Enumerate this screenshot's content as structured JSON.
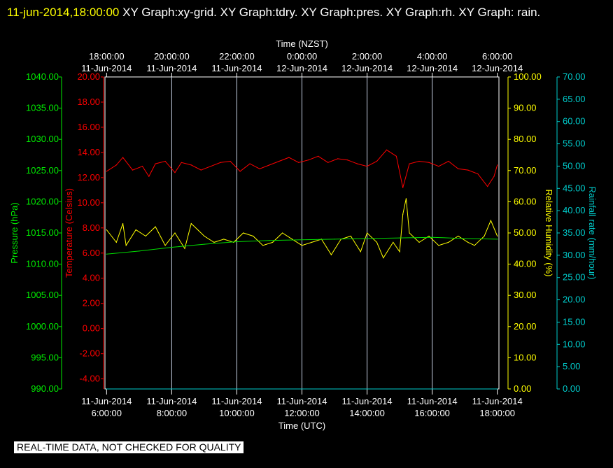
{
  "header": {
    "timestamp": "11-jun-2014,18:00:00",
    "graphs_text": "XY Graph:xy-grid.  XY Graph:tdry.  XY Graph:pres.  XY Graph:rh.  XY Graph: rain."
  },
  "footer": {
    "quality_note": "REAL-TIME DATA, NOT CHECKED FOR QUALITY"
  },
  "chart_data": {
    "type": "line",
    "x_top_label": "Time (NZST)",
    "x_bottom_label": "Time (UTC)",
    "x_ticks": [
      {
        "hour": 0,
        "utc_time": "6:00:00",
        "utc_date": "11-Jun-2014",
        "nzst_time": "18:00:00",
        "nzst_date": "11-Jun-2014"
      },
      {
        "hour": 2,
        "utc_time": "8:00:00",
        "utc_date": "11-Jun-2014",
        "nzst_time": "20:00:00",
        "nzst_date": "11-Jun-2014"
      },
      {
        "hour": 4,
        "utc_time": "10:00:00",
        "utc_date": "11-Jun-2014",
        "nzst_time": "22:00:00",
        "nzst_date": "11-Jun-2014"
      },
      {
        "hour": 6,
        "utc_time": "12:00:00",
        "utc_date": "11-Jun-2014",
        "nzst_time": "0:00:00",
        "nzst_date": "12-Jun-2014"
      },
      {
        "hour": 8,
        "utc_time": "14:00:00",
        "utc_date": "11-Jun-2014",
        "nzst_time": "2:00:00",
        "nzst_date": "12-Jun-2014"
      },
      {
        "hour": 10,
        "utc_time": "16:00:00",
        "utc_date": "11-Jun-2014",
        "nzst_time": "4:00:00",
        "nzst_date": "12-Jun-2014"
      },
      {
        "hour": 12,
        "utc_time": "18:00:00",
        "utc_date": "11-Jun-2014",
        "nzst_time": "6:00:00",
        "nzst_date": "12-Jun-2014"
      }
    ],
    "xlim_hours": [
      -0.05,
      12.05
    ],
    "grid": true,
    "axes": {
      "pressure": {
        "label": "Pressure (hPa)",
        "color": "#00ee00",
        "ylim": [
          990,
          1040
        ],
        "ticks": [
          "1040.00",
          "1035.00",
          "1030.00",
          "1025.00",
          "1020.00",
          "1015.00",
          "1010.00",
          "1005.00",
          "1000.00",
          "995.00",
          "990.00"
        ]
      },
      "temperature": {
        "label": "Temperature (Celsius)",
        "color": "#ff0000",
        "ylim": [
          -4.8,
          20
        ],
        "ticks": [
          "20.00",
          "18.00",
          "16.00",
          "14.00",
          "12.00",
          "10.00",
          "8.00",
          "6.00",
          "4.00",
          "2.00",
          "0.00",
          "-2.00",
          "-4.00"
        ]
      },
      "humidity": {
        "label": "Relative Humidity (%)",
        "color": "#ffff00",
        "ylim": [
          0,
          100
        ],
        "ticks": [
          "100.00",
          "90.00",
          "80.00",
          "70.00",
          "60.00",
          "50.00",
          "40.00",
          "30.00",
          "20.00",
          "10.00",
          "0.00"
        ]
      },
      "rainfall": {
        "label": "Rainfall rate (mm/hour)",
        "color": "#00cccc",
        "ylim": [
          0,
          70
        ],
        "ticks": [
          "70.00",
          "65.00",
          "60.00",
          "55.00",
          "50.00",
          "45.00",
          "40.00",
          "35.00",
          "30.00",
          "25.00",
          "20.00",
          "15.00",
          "10.00",
          "5.00",
          "0.00"
        ]
      }
    },
    "series": [
      {
        "axis": "temperature",
        "color": "#ff0000",
        "x": [
          0,
          0.3,
          0.5,
          0.8,
          1.1,
          1.3,
          1.5,
          1.8,
          2.1,
          2.3,
          2.6,
          2.9,
          3.2,
          3.5,
          3.8,
          4.1,
          4.4,
          4.7,
          5.0,
          5.3,
          5.6,
          5.9,
          6.2,
          6.5,
          6.8,
          7.1,
          7.4,
          7.7,
          8.0,
          8.3,
          8.6,
          8.9,
          9.1,
          9.3,
          9.6,
          9.9,
          10.2,
          10.5,
          10.8,
          11.1,
          11.4,
          11.7,
          11.9,
          12.0
        ],
        "values": [
          12.5,
          13.0,
          13.6,
          12.6,
          12.9,
          12.1,
          13.1,
          13.3,
          12.4,
          13.2,
          13.0,
          12.6,
          12.9,
          13.2,
          13.3,
          12.5,
          13.1,
          12.7,
          13.0,
          13.3,
          13.6,
          13.2,
          13.4,
          13.7,
          13.2,
          13.5,
          13.4,
          13.1,
          12.9,
          13.3,
          14.2,
          13.7,
          11.2,
          13.1,
          13.3,
          13.2,
          12.9,
          13.3,
          12.7,
          12.6,
          12.3,
          11.3,
          12.1,
          13.0
        ]
      },
      {
        "axis": "humidity",
        "color": "#ffff00",
        "x": [
          0,
          0.3,
          0.5,
          0.6,
          0.9,
          1.2,
          1.5,
          1.8,
          2.1,
          2.4,
          2.6,
          2.8,
          3.0,
          3.3,
          3.6,
          3.9,
          4.2,
          4.5,
          4.8,
          5.1,
          5.4,
          5.7,
          6.0,
          6.3,
          6.6,
          6.9,
          7.2,
          7.5,
          7.8,
          8.0,
          8.3,
          8.5,
          8.8,
          9.0,
          9.1,
          9.2,
          9.3,
          9.6,
          9.9,
          10.2,
          10.5,
          10.8,
          11.1,
          11.3,
          11.6,
          11.8,
          12.0
        ],
        "values": [
          51,
          47,
          53,
          46,
          51,
          49,
          52,
          46,
          50,
          45,
          53,
          51,
          49,
          47,
          48,
          47,
          50,
          49,
          46,
          47,
          50,
          48,
          46,
          47,
          48,
          43,
          48,
          49,
          44,
          50,
          47,
          42,
          47,
          44,
          56,
          61,
          50,
          47,
          49,
          46,
          47,
          49,
          47,
          46,
          49,
          54,
          49
        ]
      },
      {
        "axis": "pressure",
        "color": "#00dd00",
        "x": [
          0,
          1,
          2,
          3,
          4,
          5,
          6,
          7,
          8,
          9,
          10,
          11,
          12
        ],
        "values": [
          1011.6,
          1012.1,
          1012.7,
          1013.2,
          1013.6,
          1013.8,
          1013.9,
          1014.0,
          1014.1,
          1014.2,
          1014.3,
          1014.1,
          1014.0
        ]
      },
      {
        "axis": "rainfall",
        "color": "#00cccc",
        "x": [
          0,
          12
        ],
        "values": [
          0,
          0
        ]
      }
    ]
  }
}
